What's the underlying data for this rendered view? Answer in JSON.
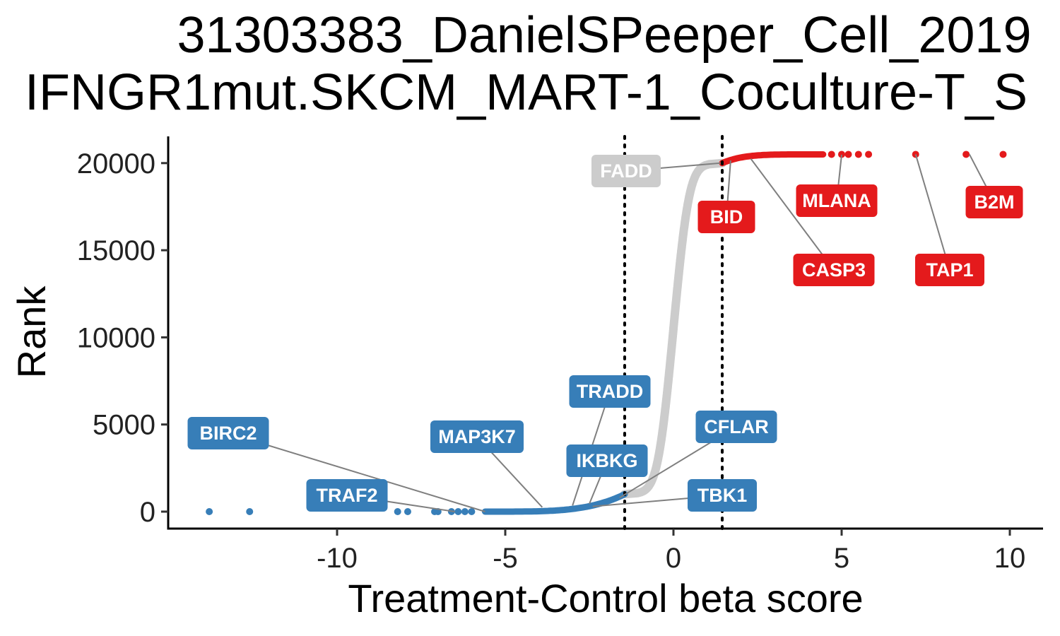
{
  "chart_data": {
    "type": "scatter",
    "title": [
      "31303383_DanielSPeeper_Cell_2019",
      "IFNGR1mut.SKCM_MART-1_Coculture-T_S"
    ],
    "xlabel": "Treatment-Control beta score",
    "ylabel": "Rank",
    "xlim": [
      -15,
      11
    ],
    "ylim": [
      -1000,
      21500
    ],
    "xticks": [
      -10,
      -5,
      0,
      5,
      10
    ],
    "xtick_labels": [
      "-10",
      "-5",
      "0",
      "5",
      "10"
    ],
    "yticks": [
      0,
      5000,
      10000,
      15000,
      20000
    ],
    "ytick_labels": [
      "0",
      "5000",
      "10000",
      "15000",
      "20000"
    ],
    "thresholds": [
      -1.45,
      1.45
    ],
    "grid": false,
    "legend": "none",
    "colors": {
      "negative": "#377EB8",
      "neutral": "#CCCCCC",
      "positive": "#E41A1C"
    },
    "n_genes": 20500,
    "negative_outliers": [
      {
        "x": -13.8,
        "rank": 0
      },
      {
        "x": -12.6,
        "rank": 0
      },
      {
        "x": -8.2,
        "rank": 0
      },
      {
        "x": -7.9,
        "rank": 0
      },
      {
        "x": -7.1,
        "rank": 0
      },
      {
        "x": -7.0,
        "rank": 0
      },
      {
        "x": -6.6,
        "rank": 0
      },
      {
        "x": -6.4,
        "rank": 0
      },
      {
        "x": -6.2,
        "rank": 0
      },
      {
        "x": -6.0,
        "rank": 0
      }
    ],
    "positive_outliers": [
      {
        "x": 4.7,
        "rank": 20500
      },
      {
        "x": 5.0,
        "rank": 20500
      },
      {
        "x": 5.2,
        "rank": 20500
      },
      {
        "x": 5.5,
        "rank": 20500
      },
      {
        "x": 5.8,
        "rank": 20500
      },
      {
        "x": 7.2,
        "rank": 20500
      },
      {
        "x": 8.7,
        "rank": 20500
      },
      {
        "x": 9.8,
        "rank": 20500
      }
    ],
    "labeled_genes": [
      {
        "gene": "FADD",
        "x": 1.4,
        "rank": 20000,
        "group": "neutral"
      },
      {
        "gene": "BID",
        "x": 1.7,
        "rank": 20150,
        "group": "positive"
      },
      {
        "gene": "MLANA",
        "x": 5.0,
        "rank": 20480,
        "group": "positive"
      },
      {
        "gene": "CASP3",
        "x": 2.3,
        "rank": 20250,
        "group": "positive"
      },
      {
        "gene": "B2M",
        "x": 8.8,
        "rank": 20500,
        "group": "positive"
      },
      {
        "gene": "TAP1",
        "x": 7.2,
        "rank": 20500,
        "group": "positive"
      },
      {
        "gene": "TRADD",
        "x": -3.0,
        "rank": 350,
        "group": "negative"
      },
      {
        "gene": "MAP3K7",
        "x": -3.9,
        "rank": 250,
        "group": "negative"
      },
      {
        "gene": "IKBKG",
        "x": -2.5,
        "rank": 450,
        "group": "negative"
      },
      {
        "gene": "CFLAR",
        "x": -1.6,
        "rank": 800,
        "group": "negative"
      },
      {
        "gene": "BIRC2",
        "x": -5.6,
        "rank": 0,
        "group": "negative"
      },
      {
        "gene": "TRAF2",
        "x": -6.5,
        "rank": 0,
        "group": "negative"
      },
      {
        "gene": "TBK1",
        "x": -2.4,
        "rank": 300,
        "group": "negative"
      }
    ]
  }
}
